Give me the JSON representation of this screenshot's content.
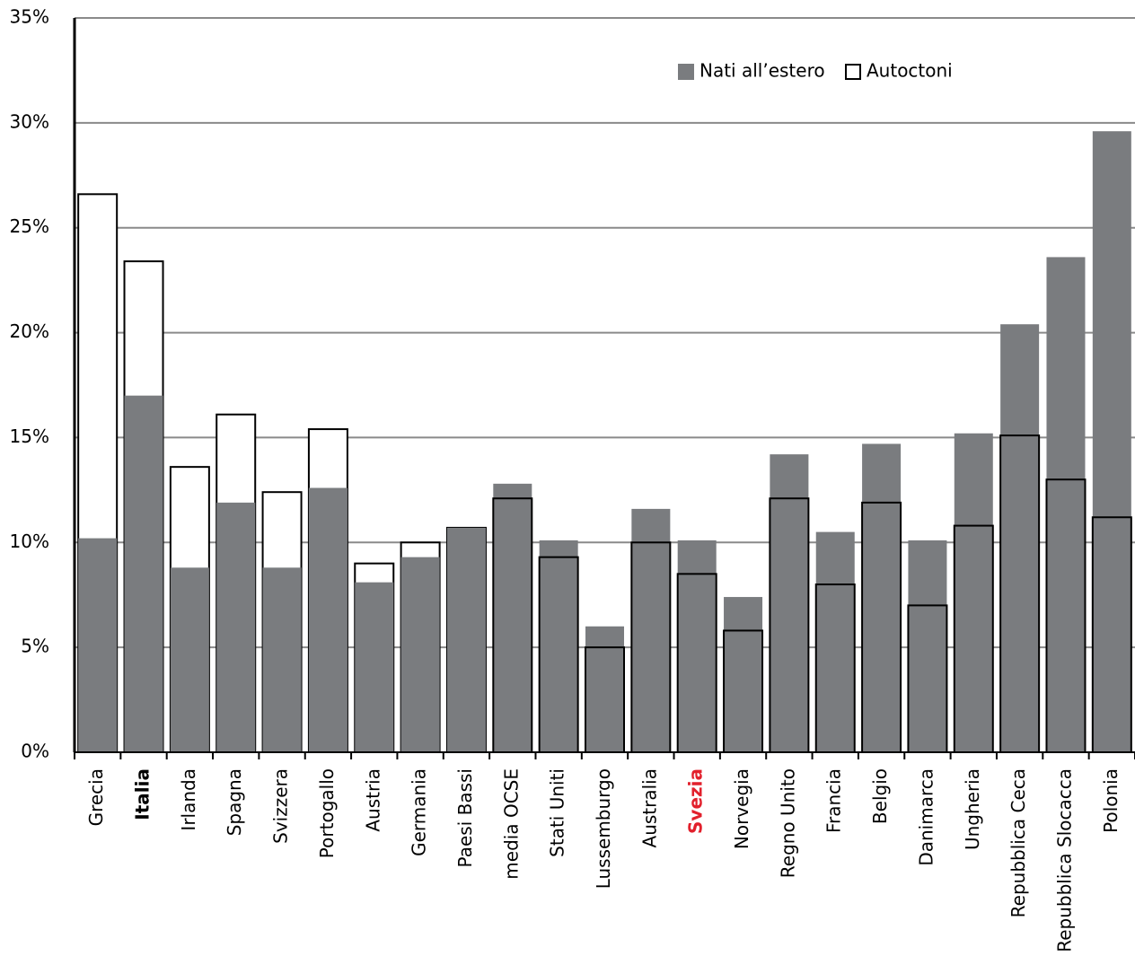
{
  "chart_data": {
    "type": "overlap-bar",
    "categories": [
      "Grecia",
      "Italia",
      "Irlanda",
      "Spagna",
      "Svizzera",
      "Portogallo",
      "Austria",
      "Germania",
      "Paesi Bassi",
      "media OCSE",
      "Stati Uniti",
      "Lussemburgo",
      "Australia",
      "Svezia",
      "Norvegia",
      "Regno Unito",
      "Francia",
      "Belgio",
      "Danimarca",
      "Ungheria",
      "Repubblica Ceca",
      "Repubblica Slocacca",
      "Polonia"
    ],
    "series": [
      {
        "name": "Nati all’estero",
        "color": "#7a7c7f",
        "values": [
          10.2,
          17.0,
          8.8,
          11.9,
          8.8,
          12.6,
          8.1,
          9.3,
          10.7,
          12.8,
          10.1,
          6.0,
          11.6,
          10.1,
          7.4,
          14.2,
          10.5,
          14.7,
          10.1,
          15.2,
          20.4,
          23.6,
          29.6
        ]
      },
      {
        "name": "Autoctoni",
        "color": "#ffffff",
        "values": [
          26.6,
          23.4,
          13.6,
          16.1,
          12.4,
          15.4,
          9.0,
          10.0,
          10.7,
          12.1,
          9.3,
          5.0,
          10.0,
          8.5,
          5.8,
          12.1,
          8.0,
          11.9,
          7.0,
          10.8,
          15.1,
          13.0,
          11.2
        ]
      }
    ],
    "ylim": [
      0,
      35
    ],
    "yticks": [
      {
        "value": 0,
        "label": "0%"
      },
      {
        "value": 5,
        "label": "5%"
      },
      {
        "value": 10,
        "label": "10%"
      },
      {
        "value": 15,
        "label": "15%"
      },
      {
        "value": 20,
        "label": "20%"
      },
      {
        "value": 25,
        "label": "25%"
      },
      {
        "value": 30,
        "label": "30%"
      },
      {
        "value": 35,
        "label": "35%"
      }
    ],
    "grid": true,
    "legend": "top-right",
    "highlighted_categories": [
      {
        "index": 1,
        "bold": true,
        "color": "#000000"
      },
      {
        "index": 13,
        "bold": true,
        "color": "#e2202c"
      }
    ]
  }
}
